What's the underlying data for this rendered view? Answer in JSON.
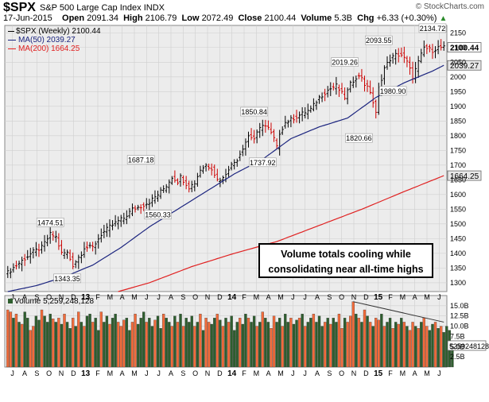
{
  "header": {
    "symbol": "$SPX",
    "name": "S&P 500 Large Cap Index",
    "exchange": "INDX",
    "credit": "© StockCharts.com",
    "date": "17-Jun-2015",
    "open_label": "Open",
    "open": "2091.34",
    "high_label": "High",
    "high": "2106.79",
    "low_label": "Low",
    "low": "2072.49",
    "close_label": "Close",
    "close": "2100.44",
    "volume_label": "Volume",
    "volume": "5.3B",
    "chg_label": "Chg",
    "chg": "+6.33 (+0.30%)"
  },
  "price_legend": {
    "main": "$SPX (Weekly) 2100.44",
    "ma50": "MA(50) 2039.27",
    "ma200": "MA(200) 1664.25"
  },
  "volume_legend": "Volume 5,259,248,128",
  "callout": {
    "line1": "Volume totals cooling while",
    "line2": "consolidating near all-time highs"
  },
  "colors": {
    "up": "#000000",
    "down": "#cc0000",
    "ma50": "#1a237e",
    "ma200": "#e02020",
    "vol_up": "#2e5e2e",
    "vol_down": "#f26b3a",
    "plot_bg": "#ececec",
    "grid": "#cfcfcf"
  },
  "chart_data": [
    {
      "type": "line",
      "title": "$SPX (Weekly) 2100.44",
      "x_ticks": [
        "J",
        "A",
        "S",
        "O",
        "N",
        "D",
        "13",
        "F",
        "M",
        "A",
        "M",
        "J",
        "J",
        "A",
        "S",
        "O",
        "N",
        "D",
        "14",
        "F",
        "M",
        "A",
        "M",
        "J",
        "J",
        "A",
        "S",
        "O",
        "N",
        "D",
        "15",
        "F",
        "M",
        "A",
        "M",
        "J"
      ],
      "y_ticks": [
        1300,
        1350,
        1400,
        1450,
        1500,
        1550,
        1600,
        1650,
        1700,
        1750,
        1800,
        1850,
        1900,
        1950,
        2000,
        2050,
        2100,
        2150
      ],
      "ylim": [
        1270,
        2175
      ],
      "grid": true,
      "weeks": 155,
      "close_anchors": [
        [
          0,
          1335
        ],
        [
          5,
          1375
        ],
        [
          9,
          1405
        ],
        [
          12,
          1420
        ],
        [
          15,
          1465
        ],
        [
          17,
          1455
        ],
        [
          19,
          1400
        ],
        [
          21,
          1402
        ],
        [
          23,
          1360
        ],
        [
          26,
          1400
        ],
        [
          27,
          1420
        ],
        [
          30,
          1420
        ],
        [
          33,
          1465
        ],
        [
          36,
          1490
        ],
        [
          39,
          1510
        ],
        [
          41,
          1520
        ],
        [
          44,
          1550
        ],
        [
          47,
          1560
        ],
        [
          50,
          1575
        ],
        [
          53,
          1600
        ],
        [
          56,
          1630
        ],
        [
          58,
          1660
        ],
        [
          60,
          1645
        ],
        [
          61,
          1660
        ],
        [
          64,
          1625
        ],
        [
          66,
          1640
        ],
        [
          68,
          1685
        ],
        [
          70,
          1700
        ],
        [
          72,
          1690
        ],
        [
          74,
          1650
        ],
        [
          76,
          1655
        ],
        [
          78,
          1690
        ],
        [
          81,
          1720
        ],
        [
          83,
          1760
        ],
        [
          85,
          1800
        ],
        [
          87,
          1790
        ],
        [
          90,
          1840
        ],
        [
          92,
          1825
        ],
        [
          94,
          1790
        ],
        [
          95,
          1760
        ],
        [
          96,
          1810
        ],
        [
          98,
          1845
        ],
        [
          101,
          1860
        ],
        [
          104,
          1875
        ],
        [
          107,
          1890
        ],
        [
          110,
          1930
        ],
        [
          113,
          1955
        ],
        [
          116,
          1970
        ],
        [
          119,
          1930
        ],
        [
          121,
          1975
        ],
        [
          123,
          2000
        ],
        [
          125,
          2000
        ],
        [
          126,
          1975
        ],
        [
          128,
          1950
        ],
        [
          130,
          1875
        ],
        [
          131,
          1960
        ],
        [
          133,
          2030
        ],
        [
          135,
          2060
        ],
        [
          137,
          2075
        ],
        [
          139,
          2075
        ],
        [
          141,
          2050
        ],
        [
          143,
          2000
        ],
        [
          145,
          2050
        ],
        [
          147,
          2100
        ],
        [
          150,
          2090
        ],
        [
          152,
          2100
        ],
        [
          154,
          2100
        ]
      ],
      "ma50_anchors": [
        [
          0,
          1270
        ],
        [
          10,
          1290
        ],
        [
          20,
          1320
        ],
        [
          30,
          1360
        ],
        [
          40,
          1420
        ],
        [
          50,
          1490
        ],
        [
          60,
          1550
        ],
        [
          70,
          1610
        ],
        [
          80,
          1670
        ],
        [
          90,
          1720
        ],
        [
          100,
          1790
        ],
        [
          110,
          1830
        ],
        [
          120,
          1860
        ],
        [
          130,
          1930
        ],
        [
          140,
          1980
        ],
        [
          150,
          2020
        ],
        [
          154,
          2039.27
        ]
      ],
      "ma200_anchors": [
        [
          39,
          1270
        ],
        [
          50,
          1300
        ],
        [
          65,
          1355
        ],
        [
          80,
          1400
        ],
        [
          95,
          1440
        ],
        [
          110,
          1495
        ],
        [
          125,
          1550
        ],
        [
          140,
          1610
        ],
        [
          154,
          1664.25
        ]
      ],
      "annotations": [
        {
          "week": 15,
          "value": 1474.51,
          "text": "1474.51"
        },
        {
          "week": 21,
          "value": 1343.35,
          "text": "1343.35"
        },
        {
          "week": 47,
          "value": 1687.18,
          "text": "1687.18"
        },
        {
          "week": 53,
          "value": 1560.33,
          "text": "1560.33"
        },
        {
          "week": 87,
          "value": 1850.84,
          "text": "1850.84"
        },
        {
          "week": 90,
          "value": 1737.92,
          "text": "1737.92"
        },
        {
          "week": 119,
          "value": 2019.26,
          "text": "2019.26"
        },
        {
          "week": 124,
          "value": 1820.66,
          "text": "1820.66"
        },
        {
          "week": 131,
          "value": 2093.55,
          "text": "2093.55"
        },
        {
          "week": 136,
          "value": 1980.9,
          "text": "1980.90"
        },
        {
          "week": 150,
          "value": 2134.72,
          "text": "2134.72"
        }
      ],
      "right_labels": [
        {
          "value": 2100.44,
          "text": "2100.44"
        },
        {
          "value": 2039.27,
          "text": "2039.27"
        },
        {
          "value": 1664.25,
          "text": "1664.25"
        }
      ]
    },
    {
      "type": "bar",
      "title": "Volume 5,259,248,128",
      "x_ticks": [
        "J",
        "A",
        "S",
        "O",
        "N",
        "D",
        "13",
        "F",
        "M",
        "A",
        "M",
        "J",
        "J",
        "A",
        "S",
        "O",
        "N",
        "D",
        "14",
        "F",
        "M",
        "A",
        "M",
        "J",
        "J",
        "A",
        "S",
        "O",
        "N",
        "D",
        "15",
        "F",
        "M",
        "A",
        "M",
        "J"
      ],
      "y_ticks": [
        "2.5B",
        "5.0B",
        "7.5B",
        "10.0B",
        "12.5B",
        "15.0B"
      ],
      "ylim": [
        0,
        17.5
      ],
      "unit": "billion shares",
      "last_value": 5.259,
      "last_label": "5259248128",
      "weeks": 155,
      "seed_levels": [
        14,
        13.5,
        12,
        13,
        11,
        10.5,
        13.5,
        12,
        9,
        10,
        12.5,
        11.5,
        14,
        12.5,
        11,
        13,
        11.8,
        11,
        12,
        10.5,
        13,
        11,
        9.5,
        12,
        10,
        13.5,
        11,
        10,
        12.5,
        13,
        11,
        12,
        9,
        13.5,
        11,
        12.5,
        10.5,
        12,
        13,
        11,
        10,
        11.5,
        12,
        9,
        11,
        13,
        10.5,
        12,
        13.5,
        11,
        12,
        10,
        11.5,
        12.5,
        9.5,
        13,
        12,
        11,
        10,
        12.5,
        11,
        13,
        10,
        12,
        11,
        12.5,
        10,
        11,
        13,
        9,
        12,
        11,
        10.5,
        12,
        13,
        11.5,
        10,
        12,
        11,
        12.5,
        9,
        11,
        12,
        10.5,
        13,
        12,
        11,
        12.5,
        10,
        11,
        13.5,
        12,
        11,
        9.5,
        12.5,
        11,
        12,
        10,
        13,
        11,
        12,
        10.5,
        11.5,
        12,
        13,
        10,
        11,
        12,
        13,
        11,
        12.5,
        10,
        11,
        12,
        10.5,
        12,
        11,
        13,
        9.5,
        12,
        11,
        12.5,
        16,
        13,
        12,
        11,
        14,
        12.5,
        11,
        10,
        12,
        11.5,
        13,
        10,
        11,
        12,
        9.5,
        11,
        10.5,
        12,
        11,
        10,
        9,
        11,
        10,
        9.5,
        11,
        12,
        10,
        9,
        10.5,
        11,
        9.5,
        10,
        8.5,
        10,
        9,
        5.26
      ],
      "down_weeks": [
        0,
        1,
        3,
        5,
        8,
        9,
        12,
        16,
        18,
        20,
        23,
        25,
        27,
        30,
        33,
        36,
        39,
        40,
        41,
        44,
        45,
        49,
        52,
        55,
        58,
        60,
        62,
        66,
        68,
        70,
        71,
        74,
        76,
        78,
        82,
        85,
        88,
        90,
        93,
        94,
        97,
        100,
        103,
        105,
        108,
        112,
        114,
        117,
        118,
        120,
        121,
        122,
        124,
        126,
        128,
        130,
        131,
        133,
        136,
        138,
        140,
        142,
        143,
        145,
        147,
        148,
        151,
        153
      ],
      "trend_line": [
        [
          122,
          16.0
        ],
        [
          154,
          11.0
        ]
      ]
    }
  ]
}
